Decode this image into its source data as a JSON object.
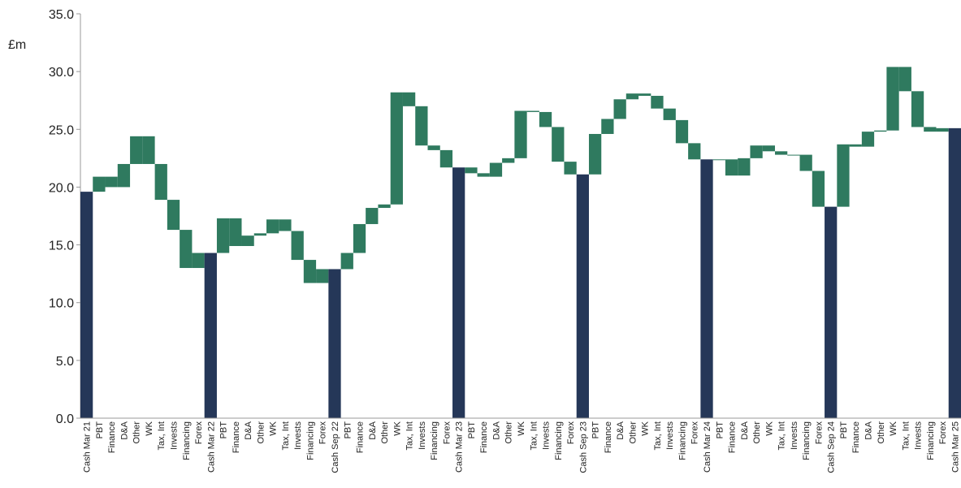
{
  "chart_data": {
    "type": "bar",
    "subtype": "waterfall",
    "ylabel": "£m",
    "ylim": [
      0,
      35
    ],
    "yticks": [
      "0.0",
      "5.0",
      "10.0",
      "15.0",
      "20.0",
      "25.0",
      "30.0",
      "35.0"
    ],
    "grid": false,
    "colors": {
      "total": "#253758",
      "change": "#2f7a5f"
    },
    "categories": [
      "Cash Mar 21",
      "PBT",
      "Finance",
      "D&A",
      "Other",
      "WK",
      "Tax, Int",
      "Invests",
      "Financing",
      "Forex",
      "Cash Mar 22",
      "PBT",
      "Finance",
      "D&A",
      "Other",
      "WK",
      "Tax, Int",
      "Invests",
      "Financing",
      "Forex",
      "Cash Sep 22",
      "PBT",
      "Finance",
      "D&A",
      "Other",
      "WK",
      "Tax, Int",
      "Invests",
      "Financing",
      "Forex",
      "Cash Mar 23",
      "PBT",
      "Finance",
      "D&A",
      "Other",
      "WK",
      "Tax, Int",
      "Invests",
      "Financing",
      "Forex",
      "Cash Sep 23",
      "PBT",
      "Finance",
      "D&A",
      "Other",
      "WK",
      "Tax, Int",
      "Invests",
      "Financing",
      "Forex",
      "Cash Mar 24",
      "PBT",
      "Finance",
      "D&A",
      "Other",
      "WK",
      "Tax, Int",
      "Invests",
      "Financing",
      "Forex",
      "Cash Sep 24",
      "PBT",
      "Finance",
      "D&A",
      "Other",
      "WK",
      "Tax, Int",
      "Invests",
      "Financing",
      "Forex",
      "Cash Mar 25"
    ],
    "kinds": [
      "total",
      "change",
      "change",
      "change",
      "change",
      "change",
      "change",
      "change",
      "change",
      "change",
      "total",
      "change",
      "change",
      "change",
      "change",
      "change",
      "change",
      "change",
      "change",
      "change",
      "total",
      "change",
      "change",
      "change",
      "change",
      "change",
      "change",
      "change",
      "change",
      "change",
      "total",
      "change",
      "change",
      "change",
      "change",
      "change",
      "change",
      "change",
      "change",
      "change",
      "total",
      "change",
      "change",
      "change",
      "change",
      "change",
      "change",
      "change",
      "change",
      "change",
      "total",
      "change",
      "change",
      "change",
      "change",
      "change",
      "change",
      "change",
      "change",
      "change",
      "total",
      "change",
      "change",
      "change",
      "change",
      "change",
      "change",
      "change",
      "change",
      "change",
      "total"
    ],
    "starts": [
      0,
      19.6,
      20.9,
      20.0,
      22.0,
      24.4,
      22.0,
      18.9,
      16.3,
      13.0,
      0,
      14.3,
      17.3,
      14.9,
      15.8,
      16.0,
      17.2,
      16.2,
      13.7,
      11.7,
      0,
      12.9,
      14.3,
      16.8,
      18.2,
      18.5,
      28.2,
      27.0,
      23.6,
      23.2,
      0,
      21.7,
      21.2,
      20.9,
      22.1,
      22.5,
      26.6,
      26.5,
      25.2,
      22.2,
      0,
      21.1,
      24.6,
      25.9,
      27.6,
      28.1,
      27.9,
      26.8,
      25.8,
      23.8,
      0,
      22.4,
      22.4,
      21.0,
      22.5,
      23.6,
      23.1,
      22.8,
      22.8,
      21.4,
      0,
      18.3,
      23.7,
      23.5,
      24.8,
      24.9,
      30.4,
      28.3,
      25.2,
      24.8,
      0
    ],
    "ends": [
      19.6,
      20.9,
      20.0,
      22.0,
      24.4,
      22.0,
      18.9,
      16.3,
      13.0,
      14.3,
      14.3,
      17.3,
      14.9,
      15.8,
      16.0,
      17.2,
      16.2,
      13.7,
      11.7,
      12.9,
      12.9,
      14.3,
      16.8,
      18.2,
      18.5,
      28.2,
      27.0,
      23.6,
      23.2,
      21.7,
      21.7,
      21.2,
      20.9,
      22.1,
      22.5,
      26.6,
      26.5,
      25.2,
      22.2,
      21.1,
      21.1,
      24.6,
      25.9,
      27.6,
      28.1,
      27.9,
      26.8,
      25.8,
      23.8,
      22.4,
      22.4,
      22.4,
      21.0,
      22.5,
      23.6,
      23.1,
      22.8,
      22.8,
      21.4,
      18.3,
      18.3,
      23.7,
      23.5,
      24.8,
      24.9,
      30.4,
      28.3,
      25.2,
      24.8,
      25.1,
      25.1
    ],
    "change_ranges": [
      null,
      [
        19.6,
        20.9
      ],
      [
        20.0,
        20.9
      ],
      [
        20.0,
        22.0
      ],
      [
        22.0,
        24.4
      ],
      [
        22.0,
        24.4
      ],
      [
        18.9,
        22.0
      ],
      [
        16.3,
        18.9
      ],
      [
        13.0,
        16.3
      ],
      [
        13.0,
        14.3
      ],
      null,
      [
        14.3,
        17.3
      ],
      [
        14.9,
        17.3
      ],
      [
        14.9,
        15.8
      ],
      [
        15.8,
        16.0
      ],
      [
        16.0,
        17.2
      ],
      [
        16.2,
        17.2
      ],
      [
        13.7,
        16.2
      ],
      [
        11.7,
        13.7
      ],
      [
        11.7,
        12.9
      ],
      null,
      [
        12.9,
        14.3
      ],
      [
        14.3,
        16.8
      ],
      [
        16.8,
        18.2
      ],
      [
        18.2,
        18.5
      ],
      [
        18.5,
        28.2
      ],
      [
        27.0,
        28.2
      ],
      [
        23.6,
        27.0
      ],
      [
        23.2,
        23.6
      ],
      [
        21.7,
        23.2
      ],
      null,
      [
        21.2,
        21.7
      ],
      [
        20.9,
        21.2
      ],
      [
        20.9,
        22.1
      ],
      [
        22.1,
        22.5
      ],
      [
        22.5,
        26.6
      ],
      [
        26.5,
        26.6
      ],
      [
        25.2,
        26.5
      ],
      [
        22.2,
        25.2
      ],
      [
        21.1,
        22.2
      ],
      null,
      [
        21.1,
        24.6
      ],
      [
        24.6,
        25.9
      ],
      [
        25.9,
        27.6
      ],
      [
        27.6,
        28.1
      ],
      [
        27.9,
        28.1
      ],
      [
        26.8,
        27.9
      ],
      [
        25.8,
        26.8
      ],
      [
        23.8,
        25.8
      ],
      [
        22.4,
        23.8
      ],
      null,
      [
        22.4,
        22.4
      ],
      [
        21.0,
        22.4
      ],
      [
        21.0,
        22.5
      ],
      [
        22.5,
        23.6
      ],
      [
        23.1,
        23.6
      ],
      [
        22.8,
        23.1
      ],
      [
        22.8,
        22.8
      ],
      [
        21.4,
        22.8
      ],
      [
        18.3,
        21.4
      ],
      null,
      [
        18.3,
        23.7
      ],
      [
        23.5,
        23.7
      ],
      [
        23.5,
        24.8
      ],
      [
        24.8,
        24.9
      ],
      [
        24.9,
        30.4
      ],
      [
        28.3,
        30.4
      ],
      [
        25.2,
        28.3
      ],
      [
        24.8,
        25.2
      ],
      [
        24.8,
        25.1
      ],
      null
    ]
  }
}
